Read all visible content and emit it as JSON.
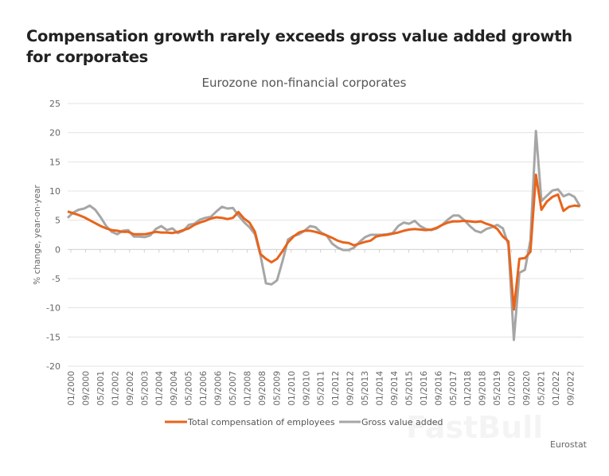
{
  "title": "Compensation growth rarely exceeds gross value added growth for corporates",
  "source": "Eurostat",
  "watermark": "FastBull",
  "chart_data": {
    "type": "line",
    "title": "Eurozone non-financial corporates",
    "ylabel": "% change, year-on-year",
    "xlabel": "",
    "ylim": [
      -20,
      25
    ],
    "yticks": [
      25,
      20,
      15,
      10,
      5,
      0,
      -5,
      -10,
      -15,
      -20
    ],
    "xtick_labels": [
      "01/2000",
      "09/2000",
      "05/2001",
      "01/2002",
      "09/2002",
      "05/2003",
      "01/2004",
      "09/2004",
      "05/2005",
      "01/2006",
      "09/2006",
      "05/2007",
      "01/2008",
      "09/2008",
      "05/2009",
      "01/2010",
      "09/2010",
      "05/2011",
      "01/2012",
      "09/2012",
      "05/2013",
      "01/2014",
      "09/2014",
      "05/2015",
      "01/2016",
      "09/2016",
      "05/2017",
      "01/2018",
      "09/2018",
      "05/2019",
      "01/2020",
      "09/2020",
      "05/2021",
      "01/2022",
      "09/2022"
    ],
    "x_period": "quarterly, Q1 2000 to Q2 2023",
    "grid": true,
    "legend": "bottom",
    "series": [
      {
        "name": "Total compensation of employees",
        "color": "#e8641b",
        "values": [
          6.5,
          6.2,
          5.9,
          5.5,
          5.0,
          4.5,
          4.0,
          3.6,
          3.3,
          3.2,
          3.0,
          3.0,
          2.6,
          2.6,
          2.6,
          2.8,
          3.0,
          2.9,
          2.9,
          2.8,
          3.0,
          3.3,
          3.6,
          4.2,
          4.6,
          4.9,
          5.3,
          5.5,
          5.4,
          5.2,
          5.4,
          6.4,
          5.3,
          4.6,
          3.0,
          -0.8,
          -1.6,
          -2.2,
          -1.6,
          -0.3,
          1.2,
          2.2,
          2.9,
          3.2,
          3.2,
          3.0,
          2.7,
          2.4,
          2.0,
          1.5,
          1.2,
          1.1,
          0.7,
          1.0,
          1.3,
          1.5,
          2.2,
          2.4,
          2.5,
          2.7,
          2.9,
          3.2,
          3.4,
          3.5,
          3.4,
          3.3,
          3.4,
          3.7,
          4.2,
          4.6,
          4.8,
          4.8,
          4.9,
          4.8,
          4.7,
          4.8,
          4.4,
          4.1,
          3.5,
          2.2,
          1.4,
          -10.3,
          -1.6,
          -1.5,
          -0.4,
          12.8,
          6.8,
          8.2,
          9.0,
          9.4,
          6.6,
          7.3,
          7.5,
          7.4
        ]
      },
      {
        "name": "Gross value added",
        "color": "#a6a6a6",
        "values": [
          5.4,
          6.3,
          6.8,
          7.0,
          7.5,
          6.8,
          5.5,
          4.0,
          3.0,
          2.6,
          3.2,
          3.3,
          2.2,
          2.2,
          2.1,
          2.4,
          3.5,
          4.0,
          3.3,
          3.6,
          2.8,
          3.2,
          4.2,
          4.4,
          5.1,
          5.4,
          5.6,
          6.5,
          7.3,
          7.0,
          7.1,
          5.8,
          4.7,
          3.8,
          2.6,
          -1.0,
          -5.8,
          -6.0,
          -5.3,
          -2.0,
          1.7,
          2.3,
          2.6,
          3.2,
          4.0,
          3.8,
          2.9,
          2.4,
          1.0,
          0.3,
          -0.1,
          -0.1,
          0.3,
          1.3,
          2.1,
          2.5,
          2.5,
          2.5,
          2.6,
          2.8,
          4.0,
          4.6,
          4.4,
          4.9,
          4.0,
          3.5,
          3.3,
          3.6,
          4.2,
          5.1,
          5.8,
          5.8,
          5.0,
          4.0,
          3.2,
          2.9,
          3.5,
          3.8,
          4.2,
          3.6,
          0.8,
          -15.5,
          -4.0,
          -3.5,
          1.6,
          20.3,
          8.3,
          9.2,
          10.1,
          10.3,
          9.1,
          9.5,
          9.0,
          7.4
        ]
      }
    ]
  }
}
